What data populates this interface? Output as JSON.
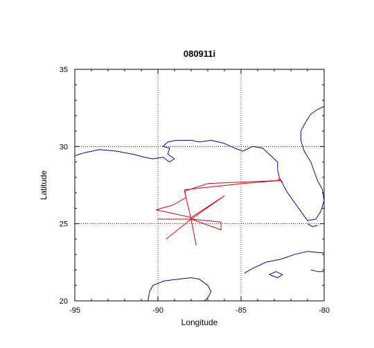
{
  "chart_data": {
    "type": "map",
    "title": "080911i",
    "xlabel": "Longitude",
    "ylabel": "Latitude",
    "xlim": [
      -95,
      -80
    ],
    "ylim": [
      20,
      35
    ],
    "xticks": [
      -95,
      -90,
      -85,
      -80
    ],
    "yticks": [
      20,
      25,
      30,
      35
    ],
    "x_tick_labels": [
      "-95",
      "-90",
      "-85",
      "-80"
    ],
    "y_tick_labels": [
      "20",
      "25",
      "30",
      "35"
    ],
    "grid": "dotted",
    "colors": {
      "coastline": "#0000aa",
      "track": "#dd0000",
      "axes": "#000000"
    },
    "flight_track": [
      [
        -82.6,
        27.8
      ],
      [
        -84.9,
        27.6
      ],
      [
        -88.4,
        27.2
      ],
      [
        -88.3,
        26.7
      ],
      [
        -89.1,
        26.2
      ],
      [
        -90.1,
        25.9
      ],
      [
        -88.0,
        25.4
      ],
      [
        -86.0,
        26.8
      ],
      [
        -88.0,
        25.3
      ],
      [
        -87.7,
        23.6
      ],
      [
        -88.0,
        25.3
      ],
      [
        -89.5,
        24.0
      ],
      [
        -88.0,
        25.3
      ],
      [
        -90.0,
        25.3
      ],
      [
        -88.0,
        25.3
      ],
      [
        -86.2,
        25.1
      ],
      [
        -86.2,
        24.6
      ],
      [
        -88.0,
        25.3
      ],
      [
        -88.4,
        27.1
      ],
      [
        -87.0,
        27.6
      ],
      [
        -82.6,
        27.8
      ],
      [
        -82.8,
        27.9
      ],
      [
        -82.5,
        27.7
      ],
      [
        -82.6,
        27.8
      ]
    ],
    "coastlines": [
      [
        [
          -95.0,
          29.4
        ],
        [
          -94.4,
          29.6
        ],
        [
          -93.5,
          29.8
        ],
        [
          -92.5,
          29.7
        ],
        [
          -91.5,
          29.5
        ],
        [
          -90.8,
          29.3
        ],
        [
          -90.3,
          29.2
        ],
        [
          -89.7,
          29.3
        ],
        [
          -89.3,
          29.0
        ],
        [
          -89.0,
          29.2
        ],
        [
          -89.4,
          29.5
        ],
        [
          -89.3,
          29.9
        ],
        [
          -89.7,
          30.0
        ],
        [
          -89.4,
          30.3
        ],
        [
          -88.9,
          30.4
        ],
        [
          -88.0,
          30.4
        ],
        [
          -87.5,
          30.3
        ],
        [
          -86.8,
          30.4
        ],
        [
          -86.0,
          30.2
        ],
        [
          -85.4,
          29.9
        ],
        [
          -84.9,
          29.7
        ],
        [
          -84.3,
          30.0
        ],
        [
          -83.7,
          29.9
        ],
        [
          -83.2,
          29.4
        ],
        [
          -82.8,
          29.0
        ],
        [
          -82.8,
          28.5
        ],
        [
          -82.7,
          28.0
        ],
        [
          -82.5,
          27.6
        ],
        [
          -82.2,
          27.0
        ],
        [
          -81.8,
          26.4
        ],
        [
          -81.4,
          25.8
        ],
        [
          -81.0,
          25.2
        ],
        [
          -80.5,
          25.3
        ],
        [
          -80.2,
          25.8
        ],
        [
          -80.0,
          26.5
        ],
        [
          -80.1,
          27.2
        ],
        [
          -80.4,
          27.8
        ],
        [
          -80.6,
          28.4
        ],
        [
          -80.8,
          29.0
        ],
        [
          -81.2,
          29.7
        ],
        [
          -81.4,
          30.4
        ],
        [
          -81.4,
          31.0
        ],
        [
          -81.1,
          31.6
        ],
        [
          -80.8,
          32.1
        ],
        [
          -80.4,
          32.4
        ],
        [
          -80.0,
          32.6
        ]
      ],
      [
        [
          -84.8,
          21.8
        ],
        [
          -84.3,
          22.1
        ],
        [
          -83.5,
          22.5
        ],
        [
          -82.6,
          22.7
        ],
        [
          -81.8,
          23.0
        ],
        [
          -81.0,
          23.2
        ],
        [
          -80.0,
          23.1
        ]
      ],
      [
        [
          -83.3,
          21.7
        ],
        [
          -82.8,
          21.5
        ],
        [
          -82.5,
          21.7
        ],
        [
          -82.9,
          21.9
        ],
        [
          -83.3,
          21.7
        ]
      ],
      [
        [
          -90.6,
          20.0
        ],
        [
          -90.5,
          20.6
        ],
        [
          -90.3,
          21.0
        ],
        [
          -89.6,
          21.3
        ],
        [
          -88.8,
          21.4
        ],
        [
          -88.0,
          21.5
        ],
        [
          -87.5,
          21.4
        ],
        [
          -87.0,
          21.0
        ],
        [
          -86.8,
          20.6
        ],
        [
          -87.0,
          20.2
        ],
        [
          -87.2,
          20.0
        ]
      ],
      [
        [
          -80.8,
          22.0
        ],
        [
          -80.4,
          21.9
        ],
        [
          -80.0,
          21.9
        ]
      ],
      [
        [
          -81.0,
          25.0
        ],
        [
          -80.7,
          24.8
        ],
        [
          -80.4,
          24.9
        ]
      ]
    ]
  }
}
